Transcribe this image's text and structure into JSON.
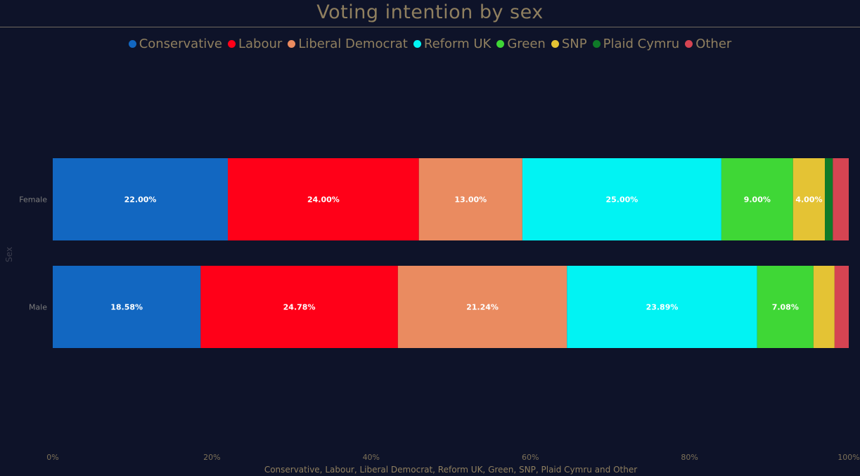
{
  "chart_data": {
    "type": "bar",
    "orientation": "horizontal",
    "stacked": "percent",
    "title": "Voting intention by sex",
    "xlabel": "Conservative, Labour, Liberal Democrat, Reform UK, Green, SNP, Plaid Cymru and Other",
    "ylabel": "Sex",
    "xlim": [
      0,
      100
    ],
    "x_ticks": [
      "0%",
      "20%",
      "40%",
      "60%",
      "80%",
      "100%"
    ],
    "legend_position": "top",
    "grid": false,
    "categories": [
      "Female",
      "Male"
    ],
    "series": [
      {
        "name": "Conservative",
        "color": "#1267c1",
        "values": [
          22.0,
          18.58
        ],
        "labels": [
          "22.00%",
          "18.58%"
        ]
      },
      {
        "name": "Labour",
        "color": "#ff0018",
        "values": [
          24.0,
          24.78
        ],
        "labels": [
          "24.00%",
          "24.78%"
        ]
      },
      {
        "name": "Liberal Democrat",
        "color": "#ea8b60",
        "values": [
          13.0,
          21.24
        ],
        "labels": [
          "13.00%",
          "21.24%"
        ]
      },
      {
        "name": "Reform UK",
        "color": "#01f3f3",
        "values": [
          25.0,
          23.89
        ],
        "labels": [
          "25.00%",
          "23.89%"
        ]
      },
      {
        "name": "Green",
        "color": "#3fd736",
        "values": [
          9.0,
          7.08
        ],
        "labels": [
          "9.00%",
          "7.08%"
        ]
      },
      {
        "name": "SNP",
        "color": "#e4c334",
        "values": [
          4.0,
          2.65
        ],
        "labels": [
          "4.00%",
          ""
        ]
      },
      {
        "name": "Plaid Cymru",
        "color": "#0f7a28",
        "values": [
          1.0,
          0.0
        ],
        "labels": [
          "",
          ""
        ]
      },
      {
        "name": "Other",
        "color": "#d54452",
        "values": [
          2.0,
          1.78
        ],
        "labels": [
          "",
          ""
        ]
      }
    ]
  }
}
